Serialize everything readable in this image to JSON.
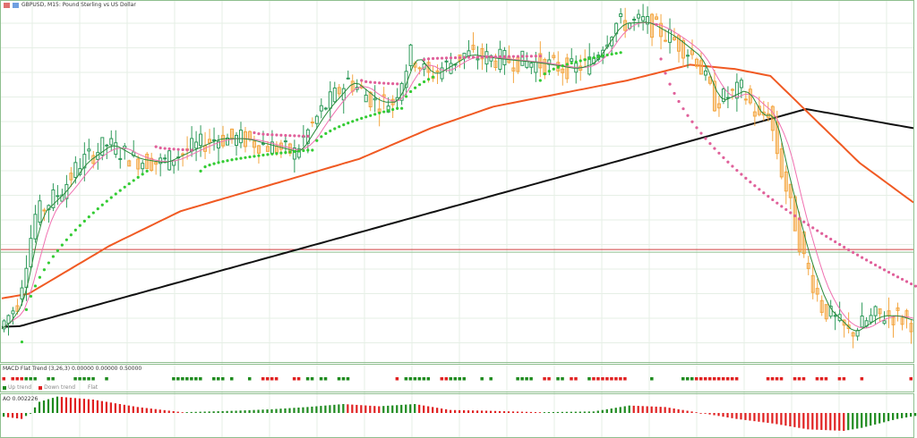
{
  "window": {
    "title": "GBPUSD, M15:  Pound Sterling vs US Dollar"
  },
  "colors": {
    "frame": "#8fbf8f",
    "grid": "#e6efe6",
    "up": "#1e8a1e",
    "down": "#e02020",
    "candle_bear": "#f4a640",
    "candle_bull": "#2e9a5a",
    "ma_long": "#111111",
    "ma_mid": "#f05a23",
    "ma_fast": "#2a8a3a",
    "ma_fast2": "#f070b0",
    "sar_up": "#33cc33",
    "sar_down": "#e0609a",
    "hline": "#d04040"
  },
  "macd": {
    "label": "MACD Flat Trend (3,26,3) 0.00000 0.00000 0.50000",
    "legend": {
      "up": "Up trend",
      "down": "Down trend",
      "flat": "Flat"
    }
  },
  "ao": {
    "label": "AO 0.002226"
  },
  "chart_data": [
    {
      "type": "line",
      "title": "GBPUSD, M15:  Pound Sterling vs US Dollar",
      "x_unit": "bar",
      "xlim": [
        0,
        204
      ],
      "ylim": [
        0,
        100
      ],
      "grid": true,
      "series": [
        {
          "role": "price",
          "points": [
            [
              0,
              8.8
            ],
            [
              4,
              16.3
            ],
            [
              8,
              41.3
            ],
            [
              14,
              48.8
            ],
            [
              18,
              56.3
            ],
            [
              24,
              61.8
            ],
            [
              30,
              57.5
            ],
            [
              36,
              56.3
            ],
            [
              42,
              60
            ],
            [
              48,
              63.3
            ],
            [
              54,
              63.3
            ],
            [
              60,
              61.3
            ],
            [
              66,
              59.3
            ],
            [
              72,
              71.3
            ],
            [
              78,
              80
            ],
            [
              84,
              73.8
            ],
            [
              88,
              73.8
            ],
            [
              92,
              87.5
            ],
            [
              96,
              81.3
            ],
            [
              104,
              87.5
            ],
            [
              110,
              86.3
            ],
            [
              120,
              85
            ],
            [
              128,
              83.3
            ],
            [
              132,
              85
            ],
            [
              138,
              96.3
            ],
            [
              144,
              96.8
            ],
            [
              150,
              92.5
            ],
            [
              156,
              86.3
            ],
            [
              160,
              73.8
            ],
            [
              166,
              77.5
            ],
            [
              170,
              68.8
            ],
            [
              172,
              71.3
            ],
            [
              175,
              53.8
            ],
            [
              180,
              28.8
            ],
            [
              184,
              15
            ],
            [
              190,
              7.5
            ],
            [
              196,
              12.5
            ],
            [
              200,
              12.5
            ],
            [
              204,
              10.8
            ]
          ]
        },
        {
          "role": "ma_long",
          "points": [
            [
              0,
              9.3
            ],
            [
              4,
              9.5
            ],
            [
              180,
              71.8
            ],
            [
              204,
              66.3
            ]
          ]
        },
        {
          "role": "ma_mid",
          "points": [
            [
              0,
              17.5
            ],
            [
              6,
              18.8
            ],
            [
              24,
              32.5
            ],
            [
              40,
              42.5
            ],
            [
              60,
              50
            ],
            [
              80,
              57.5
            ],
            [
              96,
              66.3
            ],
            [
              110,
              72.5
            ],
            [
              130,
              77.5
            ],
            [
              140,
              80
            ],
            [
              154,
              84.5
            ],
            [
              164,
              83.3
            ],
            [
              172,
              81.3
            ],
            [
              180,
              71.3
            ],
            [
              192,
              56.3
            ],
            [
              204,
              45
            ]
          ]
        }
      ],
      "sar": [
        {
          "dir": "up",
          "from": [
            4,
            5
          ],
          "to": [
            32,
            54
          ]
        },
        {
          "dir": "down",
          "from": [
            34,
            61
          ],
          "to": [
            42,
            60
          ]
        },
        {
          "dir": "up",
          "from": [
            44,
            54
          ],
          "to": [
            68,
            60
          ]
        },
        {
          "dir": "down",
          "from": [
            56,
            65
          ],
          "to": [
            68,
            64
          ]
        },
        {
          "dir": "up",
          "from": [
            69,
            60
          ],
          "to": [
            88,
            72
          ]
        },
        {
          "dir": "down",
          "from": [
            80,
            80
          ],
          "to": [
            88,
            79
          ]
        },
        {
          "dir": "up",
          "from": [
            89,
            72
          ],
          "to": [
            96,
            81
          ]
        },
        {
          "dir": "down",
          "from": [
            94,
            86
          ],
          "to": [
            120,
            87
          ]
        },
        {
          "dir": "up",
          "from": [
            120,
            80
          ],
          "to": [
            138,
            88
          ]
        },
        {
          "dir": "down",
          "from": [
            146,
            96
          ],
          "to": [
            204,
            21
          ]
        }
      ],
      "hline": 31.5
    },
    {
      "type": "bar",
      "title": "MACD Flat Trend (3,26,3) 0.00000 0.00000 0.50000",
      "signals": [
        [
          "down",
          0,
          0
        ],
        [
          "down",
          2,
          4
        ],
        [
          "up",
          5,
          7
        ],
        [
          "up",
          10,
          11
        ],
        [
          "up",
          16,
          20
        ],
        [
          "up",
          23,
          23
        ],
        [
          "up",
          38,
          44
        ],
        [
          "up",
          47,
          49
        ],
        [
          "up",
          51,
          51
        ],
        [
          "up",
          55,
          55
        ],
        [
          "down",
          58,
          61
        ],
        [
          "down",
          65,
          66
        ],
        [
          "up",
          68,
          69
        ],
        [
          "up",
          71,
          72
        ],
        [
          "up",
          75,
          77
        ],
        [
          "down",
          88,
          88
        ],
        [
          "up",
          90,
          95
        ],
        [
          "down",
          98,
          99
        ],
        [
          "up",
          100,
          103
        ],
        [
          "up",
          107,
          107
        ],
        [
          "up",
          109,
          109
        ],
        [
          "up",
          115,
          118
        ],
        [
          "down",
          121,
          122
        ],
        [
          "up",
          124,
          125
        ],
        [
          "down",
          127,
          128
        ],
        [
          "up",
          131,
          131
        ],
        [
          "down",
          132,
          139
        ],
        [
          "up",
          145,
          145
        ],
        [
          "up",
          152,
          154
        ],
        [
          "down",
          155,
          164
        ],
        [
          "down",
          171,
          174
        ],
        [
          "down",
          177,
          179
        ],
        [
          "down",
          182,
          184
        ],
        [
          "down",
          187,
          188
        ],
        [
          "down",
          192,
          192
        ],
        [
          "down",
          203,
          203
        ]
      ]
    },
    {
      "type": "bar",
      "title": "AO 0.002226",
      "anchors": [
        [
          0,
          -0.0005
        ],
        [
          4,
          -0.0008
        ],
        [
          6,
          0.0
        ],
        [
          8,
          0.0015
        ],
        [
          12,
          0.0022
        ],
        [
          20,
          0.0018
        ],
        [
          30,
          0.0008
        ],
        [
          40,
          0.0001
        ],
        [
          52,
          0.0003
        ],
        [
          60,
          0.0005
        ],
        [
          68,
          0.0008
        ],
        [
          76,
          0.0012
        ],
        [
          84,
          0.0009
        ],
        [
          92,
          0.0012
        ],
        [
          100,
          0.0004
        ],
        [
          108,
          0.0003
        ],
        [
          120,
          0.0001
        ],
        [
          132,
          0.0002
        ],
        [
          140,
          0.001
        ],
        [
          148,
          0.0008
        ],
        [
          156,
          0.0
        ],
        [
          164,
          -0.0008
        ],
        [
          172,
          -0.0014
        ],
        [
          180,
          -0.0022
        ],
        [
          188,
          -0.0024
        ],
        [
          192,
          -0.002
        ],
        [
          200,
          -0.0008
        ],
        [
          204,
          -0.0004
        ]
      ]
    }
  ]
}
